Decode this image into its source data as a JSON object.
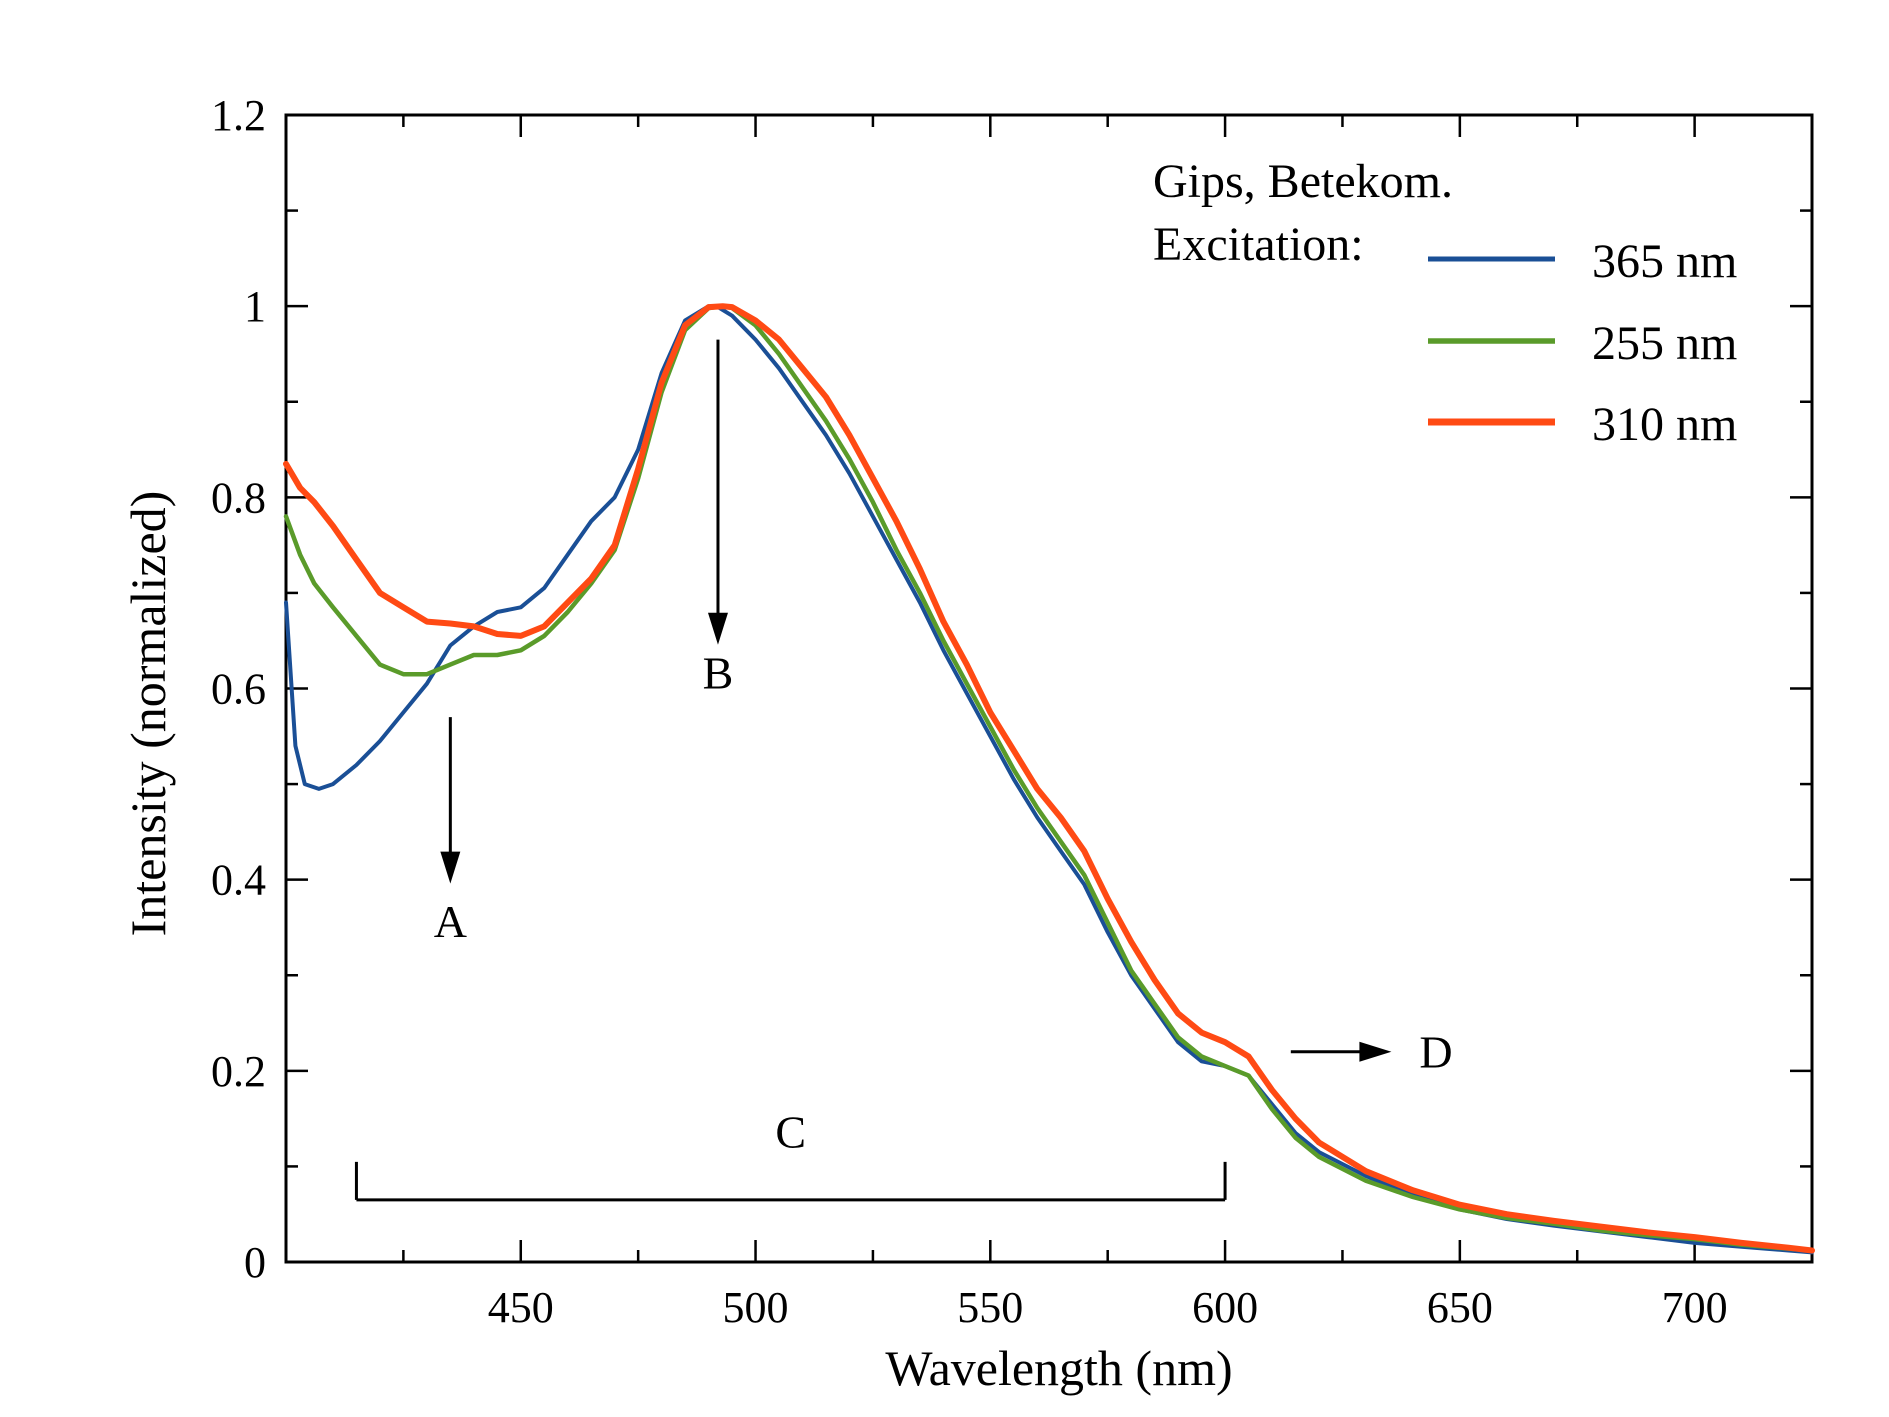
{
  "chart_data": {
    "type": "line",
    "xlabel": "Wavelength (nm)",
    "ylabel": "Intensity (normalized)",
    "xlim": [
      400,
      725
    ],
    "ylim": [
      0,
      1.2
    ],
    "x_ticks": [
      450,
      500,
      550,
      600,
      650,
      700
    ],
    "x_tick_labels": [
      "450",
      "500",
      "550",
      "600",
      "650",
      "700"
    ],
    "y_ticks": [
      0,
      0.2,
      0.4,
      0.6,
      0.8,
      1,
      1.2
    ],
    "y_tick_labels": [
      "0",
      "0.2",
      "0.4",
      "0.6",
      "0.8",
      "1",
      "1.2"
    ],
    "grid": false,
    "legend": {
      "placement": "top-right",
      "title_lines": [
        "Gips, Betekom.",
        "Excitation:"
      ]
    },
    "series": [
      {
        "name": "365 nm",
        "color": "#1a4f96",
        "x": [
          400,
          402,
          404,
          407,
          410,
          415,
          420,
          425,
          430,
          435,
          440,
          445,
          450,
          455,
          460,
          465,
          470,
          475,
          480,
          485,
          490,
          492,
          495,
          500,
          505,
          510,
          515,
          520,
          525,
          530,
          535,
          540,
          545,
          550,
          555,
          560,
          565,
          570,
          575,
          580,
          585,
          590,
          595,
          600,
          605,
          610,
          615,
          620,
          630,
          640,
          650,
          660,
          670,
          680,
          690,
          700,
          710,
          720,
          725
        ],
        "y": [
          0.69,
          0.54,
          0.5,
          0.495,
          0.5,
          0.52,
          0.545,
          0.575,
          0.605,
          0.645,
          0.665,
          0.68,
          0.685,
          0.705,
          0.74,
          0.775,
          0.8,
          0.85,
          0.93,
          0.985,
          1.0,
          0.999,
          0.99,
          0.965,
          0.935,
          0.9,
          0.865,
          0.825,
          0.78,
          0.735,
          0.69,
          0.64,
          0.595,
          0.55,
          0.505,
          0.465,
          0.43,
          0.395,
          0.345,
          0.3,
          0.265,
          0.23,
          0.21,
          0.205,
          0.195,
          0.165,
          0.135,
          0.115,
          0.09,
          0.07,
          0.055,
          0.045,
          0.038,
          0.032,
          0.026,
          0.02,
          0.016,
          0.012,
          0.01
        ]
      },
      {
        "name": "255 nm",
        "color": "#5a9b2a",
        "x": [
          400,
          403,
          406,
          410,
          415,
          420,
          425,
          430,
          435,
          440,
          445,
          450,
          455,
          460,
          465,
          470,
          475,
          480,
          485,
          490,
          493,
          495,
          500,
          505,
          510,
          515,
          520,
          525,
          530,
          535,
          540,
          545,
          550,
          555,
          560,
          565,
          570,
          575,
          580,
          585,
          590,
          595,
          600,
          605,
          610,
          615,
          620,
          630,
          640,
          650,
          660,
          670,
          680,
          690,
          700,
          710,
          720,
          725
        ],
        "y": [
          0.78,
          0.74,
          0.71,
          0.685,
          0.655,
          0.625,
          0.615,
          0.615,
          0.625,
          0.635,
          0.635,
          0.64,
          0.655,
          0.68,
          0.71,
          0.745,
          0.82,
          0.91,
          0.975,
          0.998,
          1.0,
          0.998,
          0.98,
          0.95,
          0.915,
          0.88,
          0.84,
          0.795,
          0.745,
          0.7,
          0.65,
          0.605,
          0.56,
          0.515,
          0.475,
          0.44,
          0.405,
          0.355,
          0.305,
          0.27,
          0.235,
          0.215,
          0.205,
          0.195,
          0.16,
          0.13,
          0.11,
          0.085,
          0.068,
          0.055,
          0.046,
          0.04,
          0.033,
          0.028,
          0.024,
          0.018,
          0.014,
          0.012
        ]
      },
      {
        "name": "310 nm",
        "color": "#ff4a14",
        "x": [
          400,
          403,
          406,
          410,
          415,
          420,
          425,
          430,
          435,
          440,
          445,
          450,
          455,
          460,
          465,
          470,
          475,
          480,
          485,
          490,
          493,
          495,
          500,
          505,
          510,
          515,
          520,
          525,
          530,
          535,
          540,
          545,
          550,
          555,
          560,
          565,
          570,
          575,
          580,
          585,
          590,
          595,
          600,
          605,
          610,
          615,
          620,
          630,
          640,
          650,
          660,
          670,
          680,
          690,
          700,
          710,
          720,
          725
        ],
        "y": [
          0.835,
          0.81,
          0.795,
          0.77,
          0.735,
          0.7,
          0.685,
          0.67,
          0.668,
          0.665,
          0.657,
          0.655,
          0.665,
          0.69,
          0.715,
          0.75,
          0.83,
          0.92,
          0.98,
          0.999,
          1.0,
          0.999,
          0.985,
          0.965,
          0.935,
          0.905,
          0.865,
          0.82,
          0.775,
          0.725,
          0.67,
          0.625,
          0.575,
          0.535,
          0.495,
          0.465,
          0.43,
          0.38,
          0.335,
          0.295,
          0.26,
          0.24,
          0.23,
          0.215,
          0.18,
          0.15,
          0.125,
          0.095,
          0.075,
          0.06,
          0.05,
          0.043,
          0.037,
          0.031,
          0.026,
          0.02,
          0.015,
          0.012
        ]
      }
    ],
    "annotations": {
      "A": {
        "label": "A",
        "x": 435,
        "arrow_from": 0.57,
        "arrow_to": 0.4,
        "label_y": 0.34
      },
      "B": {
        "label": "B",
        "x": 492,
        "arrow_from": 0.965,
        "arrow_to": 0.65,
        "label_y": 0.6
      },
      "C": {
        "label": "C",
        "x_start": 415,
        "x_end": 600,
        "y": 0.065,
        "label_y": 0.12
      },
      "D": {
        "label": "D",
        "x_start": 614,
        "x_end": 635,
        "y": 0.22
      }
    }
  }
}
